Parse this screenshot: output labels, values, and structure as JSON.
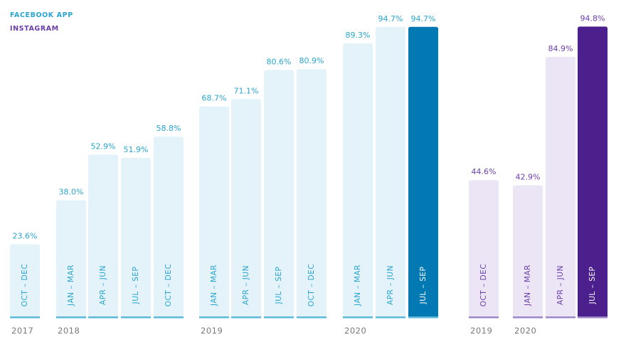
{
  "legend": {
    "facebook": "FACEBOOK APP",
    "instagram": "INSTAGRAM"
  },
  "colors": {
    "facebook_text": "#29a5cf",
    "facebook_bar": "#e4f3fa",
    "facebook_bar_highlight": "#0379b4",
    "facebook_baseline": "#5bb8d8",
    "instagram_text": "#6b3eab",
    "instagram_bar": "#ebe5f5",
    "instagram_bar_highlight": "#4b1f8c",
    "instagram_baseline": "#9b86c9",
    "year_text": "#7a7a7a"
  },
  "chart_data": [
    {
      "type": "bar",
      "series": [
        {
          "name": "FACEBOOK APP",
          "categories": [
            "OCT – DEC",
            "JAN – MAR",
            "APR – JUN",
            "JUL – SEP",
            "OCT – DEC",
            "JAN – MAR",
            "APR – JUN",
            "JUL – SEP",
            "OCT – DEC",
            "JAN – MAR",
            "APR – JUN",
            "JUL – SEP"
          ],
          "years": [
            "2017",
            "2018",
            "",
            "",
            "",
            "2019",
            "",
            "",
            "",
            "2020",
            "",
            ""
          ],
          "values": [
            23.6,
            38.0,
            52.9,
            51.9,
            58.8,
            68.7,
            71.1,
            80.6,
            80.9,
            89.3,
            94.7,
            94.7
          ],
          "value_labels": [
            "23.6%",
            "38.0%",
            "52.9%",
            "51.9%",
            "58.8%",
            "68.7%",
            "71.1%",
            "80.6%",
            "80.9%",
            "89.3%",
            "94.7%",
            "94.7%"
          ],
          "highlight_index": 11
        },
        {
          "name": "INSTAGRAM",
          "categories": [
            "OCT – DEC",
            "JAN – MAR",
            "APR – JUN",
            "JUL – SEP"
          ],
          "years": [
            "2019",
            "2020",
            "",
            ""
          ],
          "values": [
            44.6,
            42.9,
            84.9,
            94.8
          ],
          "value_labels": [
            "44.6%",
            "42.9%",
            "84.9%",
            "94.8%"
          ],
          "highlight_index": 3
        }
      ],
      "ylim": [
        0,
        100
      ],
      "grid": false,
      "legend_position": "top-left"
    }
  ]
}
